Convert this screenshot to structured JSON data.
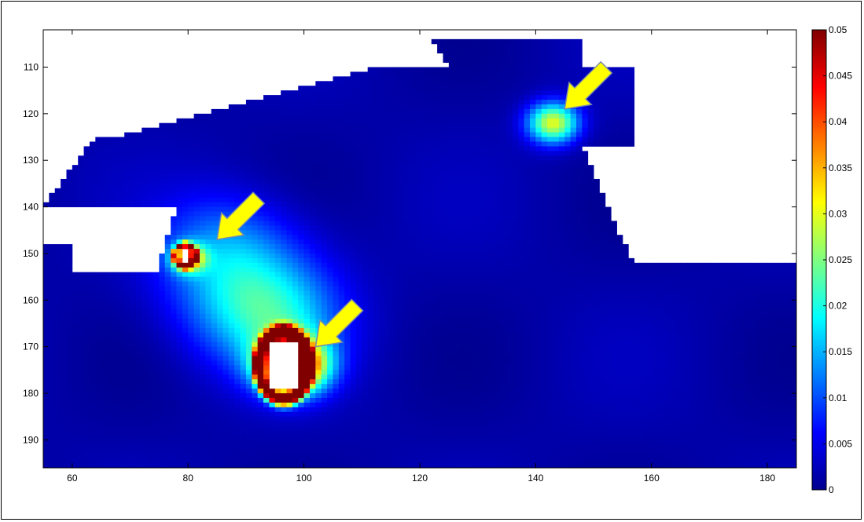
{
  "chart_data": {
    "type": "heatmap",
    "title": "",
    "xlabel": "",
    "ylabel": "",
    "xlim": [
      55,
      185
    ],
    "ylim": [
      196,
      102
    ],
    "y_axis_direction": "reversed (values increase downward)",
    "x_ticks": [
      60,
      80,
      100,
      120,
      140,
      160,
      180
    ],
    "y_ticks": [
      110,
      120,
      130,
      140,
      150,
      160,
      170,
      180,
      190
    ],
    "colorbar": {
      "colormap": "jet",
      "range": [
        0,
        0.05
      ],
      "ticks": [
        0,
        0.005,
        0.01,
        0.015,
        0.02,
        0.025,
        0.03,
        0.035,
        0.04,
        0.045,
        0.05
      ],
      "tick_labels": [
        "0",
        "0.005",
        "0.01",
        "0.015",
        "0.02",
        "0.025",
        "0.03",
        "0.035",
        "0.04",
        "0.045",
        "0.05"
      ]
    },
    "background_value": 0.002,
    "hotspots": [
      {
        "x": 143,
        "y": 122,
        "peak": 0.028,
        "spread": 3
      },
      {
        "x": 80,
        "y": 151,
        "peak": 0.03,
        "spread": 2
      },
      {
        "x": 86,
        "y": 148,
        "peak": 0.008,
        "spread": 8
      },
      {
        "x": 98,
        "y": 174,
        "peak": 0.05,
        "spread": 4
      },
      {
        "x": 95,
        "y": 165,
        "peak": 0.012,
        "spread": 8
      },
      {
        "x": 90,
        "y": 158,
        "peak": 0.01,
        "spread": 9
      }
    ],
    "no_data_regions": [
      "upper-left land mass",
      "upper-right land mass",
      "left island near x 79 y 150",
      "island at x 93-100 y 168-180"
    ],
    "annotations": [
      {
        "type": "arrow",
        "color": "#ffff00",
        "points_to": [
          145,
          119
        ]
      },
      {
        "type": "arrow",
        "color": "#ffff00",
        "points_to": [
          85,
          147
        ]
      },
      {
        "type": "arrow",
        "color": "#ffff00",
        "points_to": [
          102,
          170
        ]
      }
    ],
    "grid": false,
    "legend": "colorbar right"
  }
}
